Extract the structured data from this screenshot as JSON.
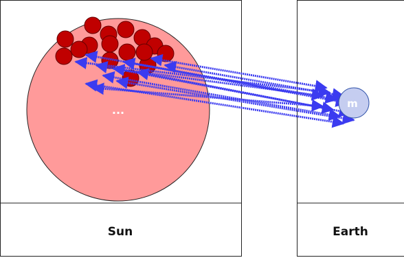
{
  "panels": [
    {
      "label": "Sun"
    },
    {
      "label": "Earth"
    }
  ],
  "nodes": [
    {
      "label": "..."
    },
    {
      "label": "m"
    }
  ]
}
